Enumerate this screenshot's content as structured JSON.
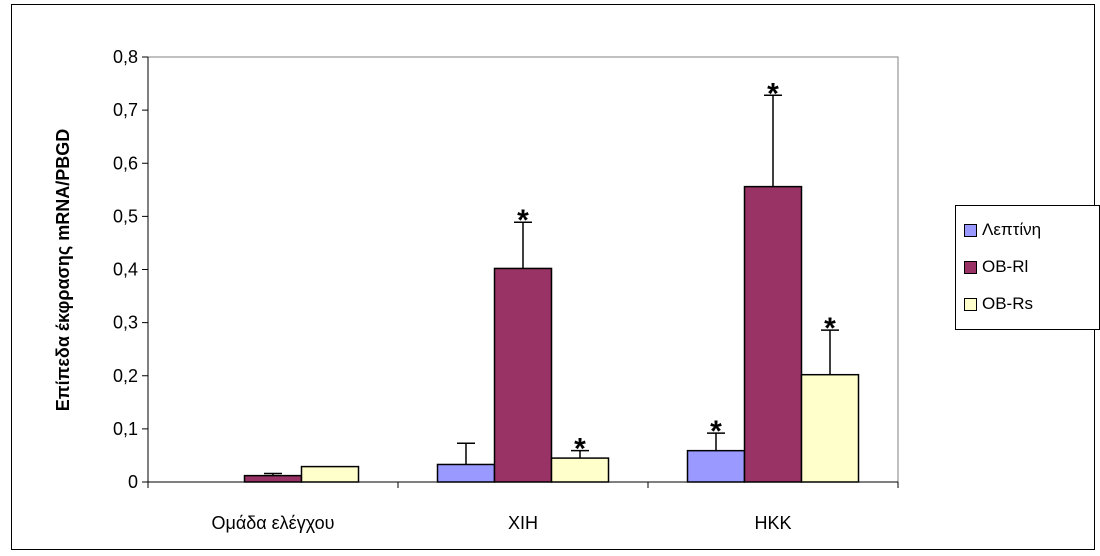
{
  "chart_data": {
    "type": "bar",
    "title": "",
    "xlabel": "",
    "ylabel": "Επίπεδα έκφρασης mRNA/PBGD",
    "ylim": [
      0,
      0.8
    ],
    "yticks": [
      "0",
      "0,1",
      "0,2",
      "0,3",
      "0,4",
      "0,5",
      "0,6",
      "0,7",
      "0,8"
    ],
    "grid": false,
    "legend_position": "right",
    "categories": [
      "Ομάδα ελέγχου",
      "XIH",
      "HKK"
    ],
    "series": [
      {
        "name": "Λεπτίνη",
        "color": "#9999ff",
        "values": [
          0,
          0.033,
          0.059
        ],
        "errors": [
          0,
          0.04,
          0.033
        ],
        "significant": [
          false,
          false,
          true
        ]
      },
      {
        "name": "OB-Rl",
        "color": "#993366",
        "values": [
          0.012,
          0.402,
          0.556
        ],
        "errors": [
          0.004,
          0.087,
          0.172
        ],
        "significant": [
          false,
          true,
          true
        ]
      },
      {
        "name": "OB-Rs",
        "color": "#ffffcc",
        "values": [
          0.029,
          0.045,
          0.202
        ],
        "errors": [
          0,
          0.014,
          0.084
        ],
        "significant": [
          false,
          true,
          true
        ]
      }
    ],
    "significance_marker": "*"
  },
  "legend": {
    "items": [
      {
        "label": "Λεπτίνη",
        "color": "#9999ff"
      },
      {
        "label": "OB-Rl",
        "color": "#993366"
      },
      {
        "label": "OB-Rs",
        "color": "#ffffcc"
      }
    ]
  }
}
